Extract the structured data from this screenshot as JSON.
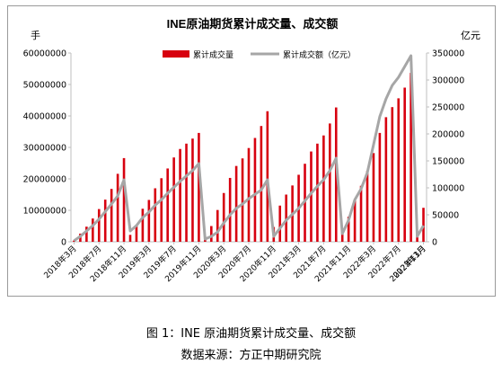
{
  "caption": {
    "figure": "图 1：INE 原油期货累计成交量、成交额",
    "source": "数据来源：方正中期研究院"
  },
  "colors": {
    "bar": "#d7000f",
    "line": "#a6a6a6",
    "axis": "#bfbfbf"
  },
  "chart_data": {
    "type": "bar",
    "title": "INE原油期货累计成交量、成交额",
    "ylabel_left": "手",
    "ylabel_right": "亿元",
    "ylim_left": [
      0,
      60000000
    ],
    "ylim_right": [
      0,
      350000
    ],
    "yticks_left": [
      "0",
      "10000000",
      "20000000",
      "30000000",
      "40000000",
      "50000000",
      "60000000"
    ],
    "yticks_right": [
      "0",
      "50000",
      "100000",
      "150000",
      "200000",
      "250000",
      "300000",
      "350000"
    ],
    "xtick_labels": [
      "2018年3月",
      "2018年7月",
      "2018年11月",
      "2019年3月",
      "2019年7月",
      "2019年11月",
      "2020年3月",
      "2020年7月",
      "2020年11月",
      "2021年3月",
      "2021年7月",
      "2021年11月",
      "2022年3月",
      "2022年7月",
      "2022年11月",
      "2023年3月"
    ],
    "legend_position": "top",
    "series": [
      {
        "name": "累计成交量",
        "type": "bar",
        "axis": "left",
        "values": [
          400000,
          2600000,
          4800000,
          7400000,
          10400000,
          13400000,
          16800000,
          21600000,
          26600000,
          2200000,
          5200000,
          10500000,
          13300000,
          17000000,
          20200000,
          23300000,
          26800000,
          29500000,
          31200000,
          32800000,
          34600000,
          1600000,
          5000000,
          10100000,
          15500000,
          20300000,
          24100000,
          26500000,
          29800000,
          33000000,
          36800000,
          41500000,
          4700000,
          11500000,
          15000000,
          17900000,
          21300000,
          24800000,
          28700000,
          31200000,
          33800000,
          37600000,
          42700000,
          3000000,
          8000000,
          13200000,
          17800000,
          22500000,
          28200000,
          34600000,
          39600000,
          42800000,
          45600000,
          49000000,
          53700000,
          3200000,
          10800000
        ]
      },
      {
        "name": "累计成交额（亿元）",
        "type": "line",
        "axis": "right",
        "values": [
          2000,
          10000,
          20000,
          30000,
          42000,
          56000,
          70000,
          85000,
          115000,
          20000,
          30000,
          45000,
          55000,
          68000,
          78000,
          90000,
          101000,
          112000,
          122000,
          132000,
          145000,
          5000,
          10000,
          18000,
          35000,
          50000,
          62000,
          70000,
          80000,
          88000,
          96000,
          115000,
          10000,
          25000,
          40000,
          51000,
          62000,
          76000,
          90000,
          103000,
          115000,
          132000,
          155000,
          15000,
          40000,
          78000,
          98000,
          128000,
          180000,
          232000,
          265000,
          290000,
          305000,
          325000,
          345000,
          10000,
          30000
        ]
      }
    ]
  }
}
